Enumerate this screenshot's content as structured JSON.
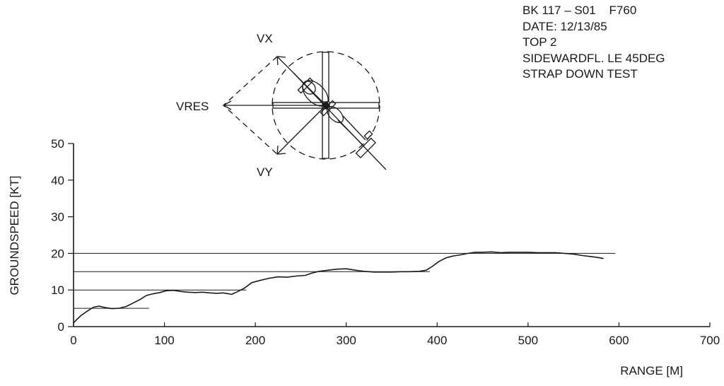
{
  "annotation": {
    "lines": [
      "BK 117 – S01    F760",
      "DATE: 12/13/85",
      "TOP 2",
      "SIDEWARDFL. LE 45DEG",
      "STRAP DOWN TEST"
    ]
  },
  "diagram": {
    "vx_label": "VX",
    "vy_label": "VY",
    "vres_label": "VRES"
  },
  "chart_data": {
    "type": "line",
    "title": "",
    "xlabel": "RANGE [M]",
    "ylabel": "GROUNDSPEED [KT]",
    "xlim": [
      0,
      700
    ],
    "ylim": [
      0,
      50
    ],
    "x_ticks": [
      0,
      100,
      200,
      300,
      400,
      500,
      600,
      700
    ],
    "y_ticks": [
      0,
      10,
      20,
      30,
      40,
      50
    ],
    "grid": false,
    "reference_lines": [
      {
        "y": 5,
        "x_start": 0,
        "x_end": 83
      },
      {
        "y": 10,
        "x_start": 0,
        "x_end": 190
      },
      {
        "y": 15,
        "x_start": 0,
        "x_end": 392
      },
      {
        "y": 20,
        "x_start": 0,
        "x_end": 596
      }
    ],
    "series": [
      {
        "x": [
          0,
          3,
          8,
          15,
          22,
          28,
          35,
          42,
          50,
          58,
          66,
          74,
          80,
          88,
          95,
          102,
          110,
          118,
          126,
          134,
          142,
          150,
          158,
          164,
          170,
          174,
          180,
          188,
          196,
          205,
          215,
          225,
          235,
          245,
          255,
          262,
          270,
          280,
          290,
          300,
          310,
          320,
          330,
          340,
          350,
          360,
          370,
          380,
          388,
          395,
          402,
          410,
          418,
          426,
          434,
          442,
          450,
          460,
          470,
          480,
          490,
          500,
          510,
          520,
          530,
          540,
          550,
          560,
          570,
          576,
          583
        ],
        "y": [
          1,
          1.8,
          3,
          4.2,
          5.3,
          5.6,
          5.2,
          4.9,
          5.0,
          5.5,
          6.5,
          7.5,
          8.5,
          9.0,
          9.3,
          9.8,
          9.9,
          9.6,
          9.4,
          9.3,
          9.4,
          9.2,
          9.1,
          9.2,
          9.0,
          8.8,
          9.5,
          10.5,
          12.0,
          12.6,
          13.2,
          13.6,
          13.5,
          13.8,
          14.0,
          14.6,
          15.1,
          15.4,
          15.7,
          15.8,
          15.4,
          15.1,
          14.9,
          14.9,
          14.9,
          15.0,
          15.0,
          15.1,
          15.4,
          16.5,
          17.8,
          18.8,
          19.3,
          19.6,
          20.0,
          20.3,
          20.3,
          20.4,
          20.2,
          20.3,
          20.3,
          20.3,
          20.2,
          20.2,
          20.2,
          20.0,
          19.8,
          19.4,
          19.1,
          18.9,
          18.6
        ]
      }
    ]
  }
}
